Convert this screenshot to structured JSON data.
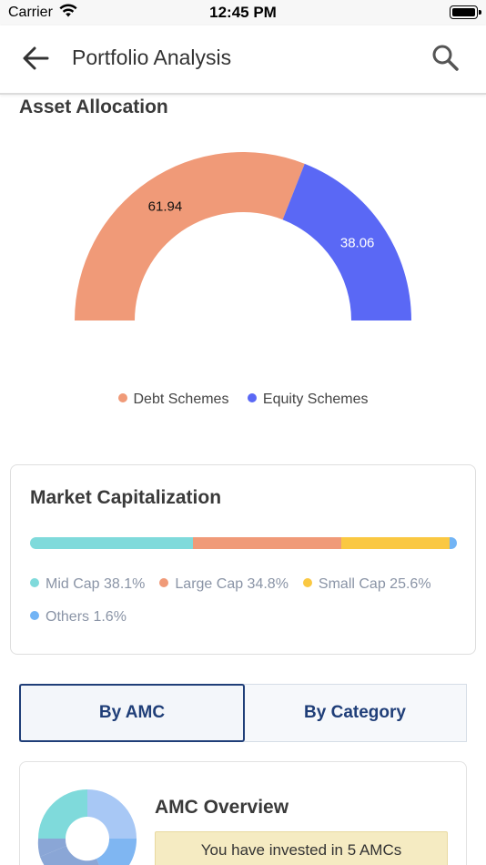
{
  "status_bar": {
    "carrier": "Carrier",
    "time": "12:45 PM"
  },
  "header": {
    "title": "Portfolio Analysis",
    "back_icon": "arrow-left-icon",
    "search_icon": "search-icon"
  },
  "asset_allocation": {
    "title": "Asset Allocation",
    "legend": [
      {
        "label": "Debt Schemes",
        "color": "#f09a78"
      },
      {
        "label": "Equity Schemes",
        "color": "#5a68f5"
      }
    ]
  },
  "chart_data": {
    "type": "pie",
    "variant": "semi-donut",
    "title": "Asset Allocation",
    "categories": [
      "Debt Schemes",
      "Equity Schemes"
    ],
    "values": [
      61.94,
      38.06
    ],
    "labels": [
      "61.94",
      "38.06"
    ],
    "colors": [
      "#f09a78",
      "#5a68f5"
    ],
    "legend": "bottom-center"
  },
  "market_cap": {
    "title": "Market Capitalization",
    "segments": [
      {
        "label": "Mid Cap 38.1%",
        "value": 38.1,
        "color": "#7fdadb"
      },
      {
        "label": "Large Cap 34.8%",
        "value": 34.8,
        "color": "#f09a78"
      },
      {
        "label": "Small Cap 25.6%",
        "value": 25.6,
        "color": "#fac842"
      },
      {
        "label": "Others 1.6%",
        "value": 1.6,
        "color": "#72b4f5"
      }
    ]
  },
  "tabs": [
    {
      "label": "By AMC",
      "active": true
    },
    {
      "label": "By Category",
      "active": false
    }
  ],
  "amc_overview": {
    "title": "AMC Overview",
    "note": "You have invested in 5 AMCs"
  }
}
